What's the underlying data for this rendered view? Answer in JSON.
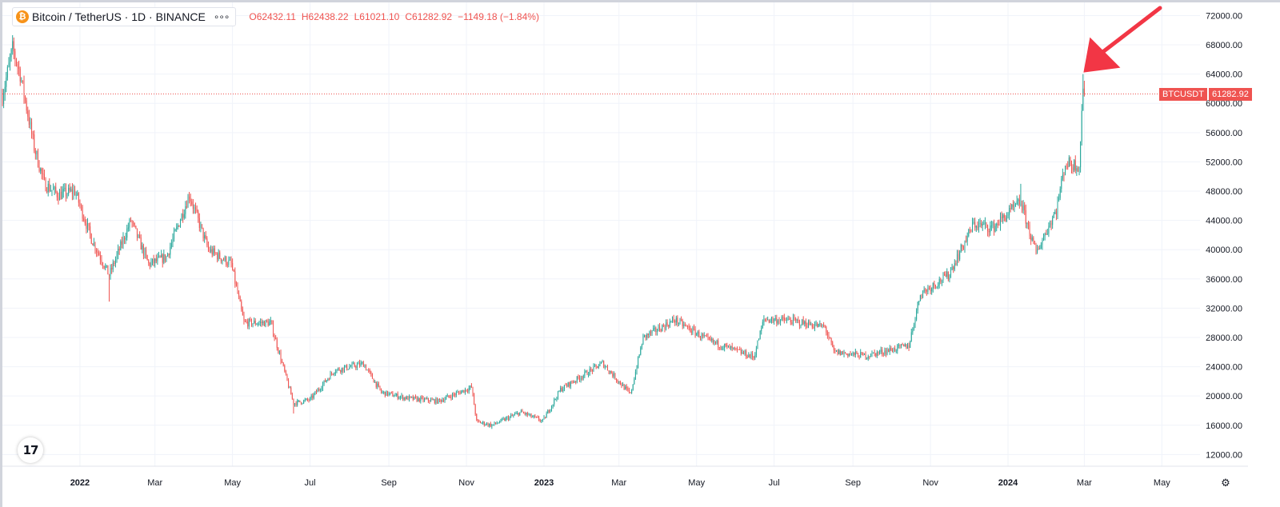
{
  "header": {
    "logo_letter": "₿",
    "symbol": "Bitcoin / TetherUS · 1D · BINANCE",
    "more_glyph": "∘∘∘",
    "ohlc": {
      "open_label": "O",
      "open": "62432.11",
      "high_label": "H",
      "high": "62438.22",
      "low_label": "L",
      "low": "61021.10",
      "close_label": "C",
      "close": "61282.92",
      "change": "−1149.18 (−1.84%)"
    }
  },
  "price_badge": {
    "symbol": "BTCUSDT",
    "value": "61282.92"
  },
  "tv_logo": "17",
  "settings_icon": "gear-icon",
  "colors": {
    "up": "#26a69a",
    "down": "#ef5350",
    "grid": "#f0f3fa",
    "text": "#131722",
    "arrow": "#f23645"
  },
  "chart_data": {
    "type": "candlestick",
    "title": "Bitcoin / TetherUS · 1D · BINANCE",
    "interval": "1D",
    "x_start": "2021-11-01",
    "x_end": "2024-05-31",
    "y_range": [
      10400,
      73800
    ],
    "grid": true,
    "y_ticks": [
      12000,
      16000,
      20000,
      24000,
      28000,
      32000,
      36000,
      40000,
      44000,
      48000,
      52000,
      56000,
      60000,
      64000,
      68000,
      72000
    ],
    "y_tick_labels": [
      "12000.00",
      "16000.00",
      "20000.00",
      "24000.00",
      "28000.00",
      "32000.00",
      "36000.00",
      "40000.00",
      "44000.00",
      "48000.00",
      "52000.00",
      "56000.00",
      "60000.00",
      "64000.00",
      "68000.00",
      "72000.00"
    ],
    "x_ticks": [
      {
        "date": "2022-01-01",
        "label": "2022"
      },
      {
        "date": "2022-03-01",
        "label": "Mar"
      },
      {
        "date": "2022-05-01",
        "label": "May"
      },
      {
        "date": "2022-07-01",
        "label": "Jul"
      },
      {
        "date": "2022-09-01",
        "label": "Sep"
      },
      {
        "date": "2022-11-01",
        "label": "Nov"
      },
      {
        "date": "2023-01-01",
        "label": "2023"
      },
      {
        "date": "2023-03-01",
        "label": "Mar"
      },
      {
        "date": "2023-05-01",
        "label": "May"
      },
      {
        "date": "2023-07-01",
        "label": "Jul"
      },
      {
        "date": "2023-09-01",
        "label": "Sep"
      },
      {
        "date": "2023-11-01",
        "label": "Nov"
      },
      {
        "date": "2024-01-01",
        "label": "2024"
      },
      {
        "date": "2024-03-01",
        "label": "Mar"
      },
      {
        "date": "2024-05-01",
        "label": "May"
      }
    ],
    "last_price": 61282.92,
    "price_path": [
      {
        "date": "2021-11-01",
        "close": 61000
      },
      {
        "date": "2021-11-09",
        "close": 67500
      },
      {
        "date": "2021-11-15",
        "close": 64000
      },
      {
        "date": "2021-11-26",
        "close": 54000
      },
      {
        "date": "2021-12-04",
        "close": 49000
      },
      {
        "date": "2021-12-15",
        "close": 47500
      },
      {
        "date": "2021-12-28",
        "close": 48000
      },
      {
        "date": "2022-01-10",
        "close": 41500
      },
      {
        "date": "2022-01-24",
        "close": 36500
      },
      {
        "date": "2022-02-10",
        "close": 44000
      },
      {
        "date": "2022-02-24",
        "close": 38000
      },
      {
        "date": "2022-03-10",
        "close": 39000
      },
      {
        "date": "2022-03-28",
        "close": 47500
      },
      {
        "date": "2022-04-12",
        "close": 40000
      },
      {
        "date": "2022-04-30",
        "close": 38000
      },
      {
        "date": "2022-05-10",
        "close": 30000
      },
      {
        "date": "2022-05-31",
        "close": 30000
      },
      {
        "date": "2022-06-13",
        "close": 22000
      },
      {
        "date": "2022-06-18",
        "close": 19000
      },
      {
        "date": "2022-07-01",
        "close": 19500
      },
      {
        "date": "2022-07-20",
        "close": 23500
      },
      {
        "date": "2022-08-12",
        "close": 24400
      },
      {
        "date": "2022-08-26",
        "close": 20500
      },
      {
        "date": "2022-09-15",
        "close": 19700
      },
      {
        "date": "2022-10-10",
        "close": 19300
      },
      {
        "date": "2022-11-05",
        "close": 21200
      },
      {
        "date": "2022-11-09",
        "close": 16500
      },
      {
        "date": "2022-11-21",
        "close": 16000
      },
      {
        "date": "2022-12-14",
        "close": 17800
      },
      {
        "date": "2022-12-31",
        "close": 16550
      },
      {
        "date": "2023-01-14",
        "close": 20900
      },
      {
        "date": "2023-02-16",
        "close": 24500
      },
      {
        "date": "2023-03-10",
        "close": 20200
      },
      {
        "date": "2023-03-20",
        "close": 28000
      },
      {
        "date": "2023-04-14",
        "close": 30400
      },
      {
        "date": "2023-05-10",
        "close": 27600
      },
      {
        "date": "2023-06-15",
        "close": 25300
      },
      {
        "date": "2023-06-23",
        "close": 30500
      },
      {
        "date": "2023-07-14",
        "close": 30300
      },
      {
        "date": "2023-08-10",
        "close": 29400
      },
      {
        "date": "2023-08-17",
        "close": 26000
      },
      {
        "date": "2023-09-11",
        "close": 25500
      },
      {
        "date": "2023-10-15",
        "close": 26900
      },
      {
        "date": "2023-10-24",
        "close": 34000
      },
      {
        "date": "2023-11-15",
        "close": 36500
      },
      {
        "date": "2023-12-05",
        "close": 43500
      },
      {
        "date": "2023-12-20",
        "close": 43000
      },
      {
        "date": "2024-01-11",
        "close": 46500
      },
      {
        "date": "2024-01-23",
        "close": 39500
      },
      {
        "date": "2024-02-08",
        "close": 45500
      },
      {
        "date": "2024-02-15",
        "close": 51800
      },
      {
        "date": "2024-02-26",
        "close": 51500
      },
      {
        "date": "2024-02-29",
        "close": 62432
      },
      {
        "date": "2024-03-01",
        "close": 61283
      }
    ],
    "highlights": [
      {
        "date": "2021-11-10",
        "high": 69000
      },
      {
        "date": "2022-01-24",
        "low": 32900
      },
      {
        "date": "2022-06-18",
        "low": 17600
      },
      {
        "date": "2022-11-21",
        "low": 15500
      },
      {
        "date": "2024-01-11",
        "high": 49000
      },
      {
        "date": "2024-02-29",
        "high": 64000
      }
    ]
  }
}
